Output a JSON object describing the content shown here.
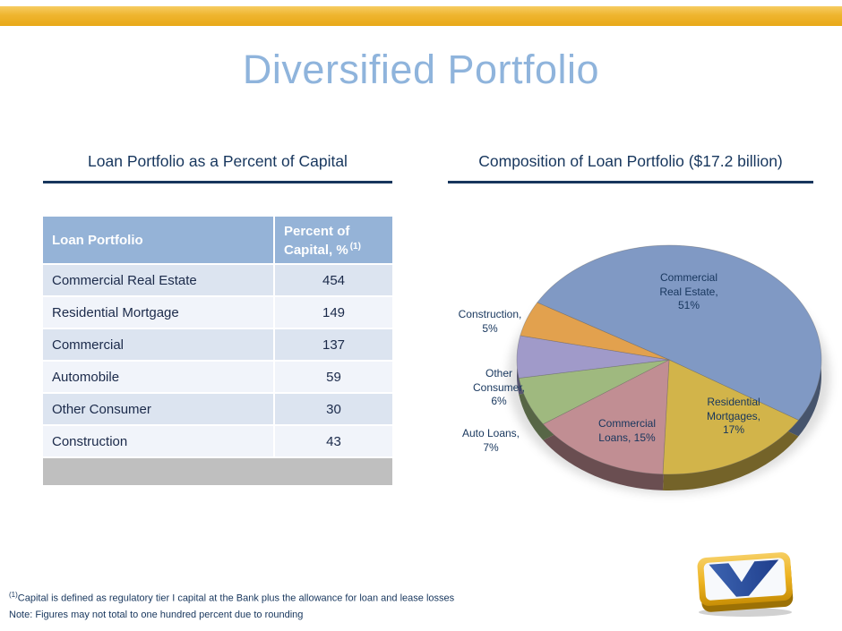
{
  "slide": {
    "title": "Diversified Portfolio",
    "left_heading": "Loan Portfolio as a Percent of Capital",
    "right_heading": "Composition of Loan Portfolio ($17.2 billion)",
    "footnote1_sup": "(1)",
    "footnote1": "Capital is defined as regulatory tier I capital at the Bank plus the allowance for loan and lease losses",
    "footnote2": "Note: Figures may not total to one hundred percent due to rounding"
  },
  "table": {
    "header": {
      "col1": "Loan Portfolio",
      "col2": "Percent of Capital, %",
      "col2_sup": "(1)"
    },
    "rows": [
      {
        "label": "Commercial Real Estate",
        "value": "454"
      },
      {
        "label": "Residential Mortgage",
        "value": "149"
      },
      {
        "label": "Commercial",
        "value": "137"
      },
      {
        "label": "Automobile",
        "value": "59"
      },
      {
        "label": "Other Consumer",
        "value": "30"
      },
      {
        "label": "Construction",
        "value": "43"
      }
    ]
  },
  "chart_data": {
    "type": "pie",
    "title": "Composition of Loan Portfolio ($17.2 billion)",
    "portfolio_total": "$17.2 billion",
    "style": "3d",
    "legend": "none",
    "start_angle_deg": -60,
    "slices": [
      {
        "name": "Commercial Real Estate",
        "value": 51,
        "color": "#8099C4",
        "label": "Commercial\nReal Estate,\n51%",
        "label_position": "inside"
      },
      {
        "name": "Residential Mortgages",
        "value": 17,
        "color": "#D2B44A",
        "label": "Residential\nMortgages,\n17%",
        "label_position": "inside"
      },
      {
        "name": "Commercial Loans",
        "value": 15,
        "color": "#C18E93",
        "label": "Commercial\nLoans, 15%",
        "label_position": "inside"
      },
      {
        "name": "Auto Loans",
        "value": 7,
        "color": "#9FB97F",
        "label": "Auto Loans,\n7%",
        "label_position": "outside"
      },
      {
        "name": "Other Consumer",
        "value": 6,
        "color": "#A09AC9",
        "label": "Other\nConsumer,\n6%",
        "label_position": "outside"
      },
      {
        "name": "Construction",
        "value": 5,
        "color": "#E2A14E",
        "label": "Construction,\n5%",
        "label_position": "outside"
      }
    ]
  },
  "colors": {
    "gold": "#EFB52F",
    "title_blue": "#8FB4DC",
    "heading_navy": "#17365D",
    "header_bg": "#95B3D7",
    "row_a": "#DCE4F0",
    "row_b": "#F1F4FA",
    "gray_bar": "#BFBFBF",
    "cell_text": "#1B2A4A"
  }
}
